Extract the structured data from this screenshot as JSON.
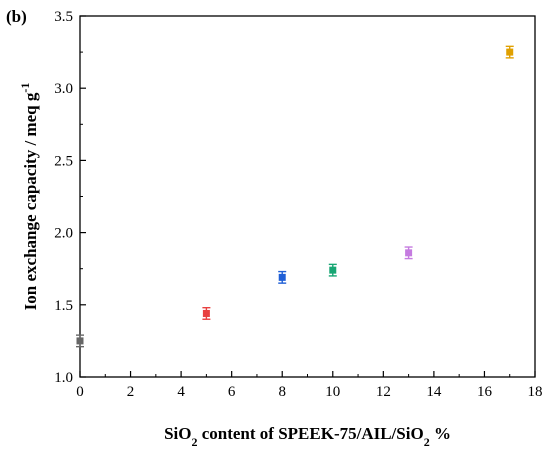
{
  "chart_data": {
    "type": "scatter",
    "panel_label": "(b)",
    "title": "",
    "xlabel": {
      "parts": [
        {
          "text": "SiO",
          "sub": false
        },
        {
          "text": "2",
          "sub": true
        },
        {
          "text": " content of SPEEK-75/AIL/SiO",
          "sub": false
        },
        {
          "text": "2",
          "sub": true
        },
        {
          "text": " %",
          "sub": false
        }
      ]
    },
    "ylabel": {
      "parts": [
        {
          "text": "Ion exchange capacity / meq g",
          "sup": false
        },
        {
          "text": "-1",
          "sup": true
        }
      ]
    },
    "xlim": [
      0,
      18
    ],
    "ylim": [
      1.0,
      3.5
    ],
    "x_ticks": [
      "0",
      "2",
      "4",
      "6",
      "8",
      "10",
      "12",
      "14",
      "16",
      "18"
    ],
    "y_ticks": [
      "1.0",
      "1.5",
      "2.0",
      "2.5",
      "3.0",
      "3.5"
    ],
    "grid": false,
    "points": [
      {
        "x": 0,
        "y": 1.25,
        "err": 0.04,
        "color": "#666666"
      },
      {
        "x": 5,
        "y": 1.44,
        "err": 0.04,
        "color": "#e84040"
      },
      {
        "x": 8,
        "y": 1.69,
        "err": 0.04,
        "color": "#1f5fd6"
      },
      {
        "x": 10,
        "y": 1.74,
        "err": 0.04,
        "color": "#17a673"
      },
      {
        "x": 13,
        "y": 1.86,
        "err": 0.04,
        "color": "#c57be0"
      },
      {
        "x": 17,
        "y": 3.25,
        "err": 0.04,
        "color": "#e0a000"
      }
    ]
  }
}
